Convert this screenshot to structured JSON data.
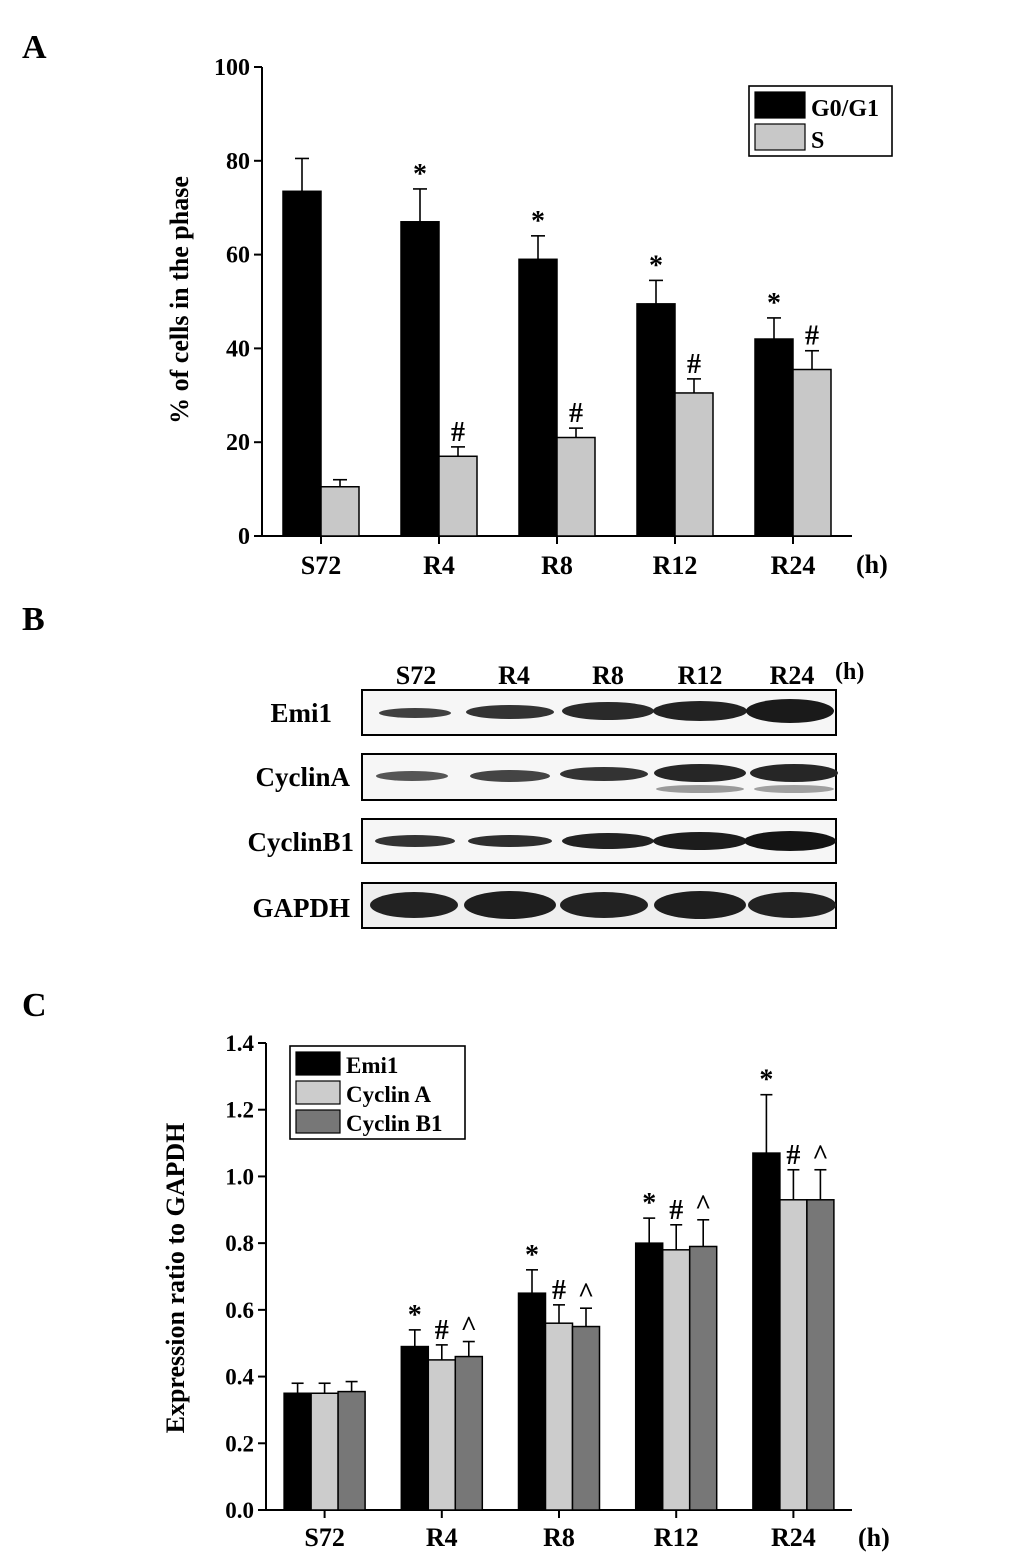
{
  "panel_labels": {
    "a": "A",
    "b": "B",
    "c": "C"
  },
  "chart_data": [
    {
      "type": "bar",
      "panel": "A",
      "title": "",
      "ylabel": "% of cells in the phase",
      "xlabel": "",
      "x_unit": "(h)",
      "ylim": [
        0,
        100
      ],
      "yticks": [
        0,
        20,
        40,
        60,
        80,
        100
      ],
      "categories": [
        "S72",
        "R4",
        "R8",
        "R12",
        "R24"
      ],
      "legend_position": "top-right",
      "series": [
        {
          "name": "G0/G1",
          "color": "#000000",
          "values": [
            73.5,
            67,
            59,
            49.5,
            42
          ],
          "errors": [
            7,
            7,
            5,
            5,
            4.5
          ],
          "markers": [
            "",
            "*",
            "*",
            "*",
            "*"
          ]
        },
        {
          "name": "S",
          "color": "#c8c8c8",
          "values": [
            10.5,
            17,
            21,
            30.5,
            35.5
          ],
          "errors": [
            1.5,
            2,
            2,
            3,
            4
          ],
          "markers": [
            "",
            "#",
            "#",
            "#",
            "#"
          ]
        }
      ]
    },
    {
      "type": "table",
      "panel": "B",
      "columns": [
        "S72",
        "R4",
        "R8",
        "R12",
        "R24"
      ],
      "x_unit": "(h)",
      "rows": [
        "Emi1",
        "CyclinA",
        "CyclinB1",
        "GAPDH"
      ]
    },
    {
      "type": "bar",
      "panel": "C",
      "title": "",
      "ylabel": "Expression ratio to GAPDH",
      "xlabel": "",
      "x_unit": "(h)",
      "ylim": [
        0,
        1.4
      ],
      "yticks": [
        "0.0",
        "0.2",
        "0.4",
        "0.6",
        "0.8",
        "1.0",
        "1.2",
        "1.4"
      ],
      "categories": [
        "S72",
        "R4",
        "R8",
        "R12",
        "R24"
      ],
      "legend_position": "top-left",
      "series": [
        {
          "name": "Emi1",
          "color": "#000000",
          "values": [
            0.35,
            0.49,
            0.65,
            0.8,
            1.07
          ],
          "errors": [
            0.03,
            0.05,
            0.07,
            0.075,
            0.175
          ],
          "markers": [
            "",
            "*",
            "*",
            "*",
            "*"
          ]
        },
        {
          "name": "Cyclin A",
          "color": "#cccccc",
          "values": [
            0.35,
            0.45,
            0.56,
            0.78,
            0.93
          ],
          "errors": [
            0.03,
            0.045,
            0.055,
            0.075,
            0.09
          ],
          "markers": [
            "",
            "#",
            "#",
            "#",
            "#"
          ]
        },
        {
          "name": "Cyclin B1",
          "color": "#777777",
          "values": [
            0.355,
            0.46,
            0.55,
            0.79,
            0.93
          ],
          "errors": [
            0.03,
            0.045,
            0.055,
            0.08,
            0.09
          ],
          "markers": [
            "",
            "^",
            "^",
            "^",
            "^"
          ]
        }
      ]
    }
  ]
}
